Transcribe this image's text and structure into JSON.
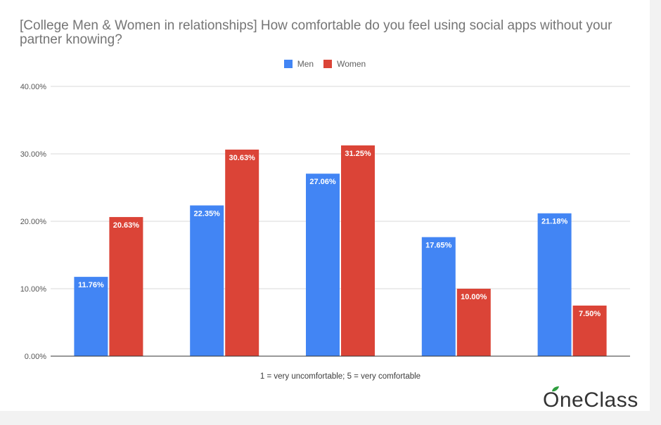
{
  "chart_data": {
    "type": "bar",
    "title": "[College Men & Women in relationships] How comfortable do you feel using social apps without your partner knowing?",
    "xlabel": "1 = very uncomfortable; 5 = very comfortable",
    "ylabel": "",
    "categories": [
      "",
      "",
      "",
      "",
      ""
    ],
    "series": [
      {
        "name": "Men",
        "color": "#4285f4",
        "values": [
          11.76,
          22.35,
          27.06,
          17.65,
          21.18
        ]
      },
      {
        "name": "Women",
        "color": "#db4437",
        "values": [
          20.63,
          30.63,
          31.25,
          10.0,
          7.5
        ]
      }
    ],
    "data_labels": [
      [
        "11.76%",
        "22.35%",
        "27.06%",
        "17.65%",
        "21.18%"
      ],
      [
        "20.63%",
        "30.63%",
        "31.25%",
        "10.00%",
        "7.50%"
      ]
    ],
    "ylim": [
      0,
      40
    ],
    "yticks": [
      "0.00%",
      "10.00%",
      "20.00%",
      "30.00%",
      "40.00%"
    ],
    "grid": true,
    "legend_position": "top-center"
  },
  "legend": {
    "men": "Men",
    "women": "Women"
  },
  "branding": {
    "logo_text": "OneClass",
    "logo_leaf_color": "#2e9e3e"
  }
}
